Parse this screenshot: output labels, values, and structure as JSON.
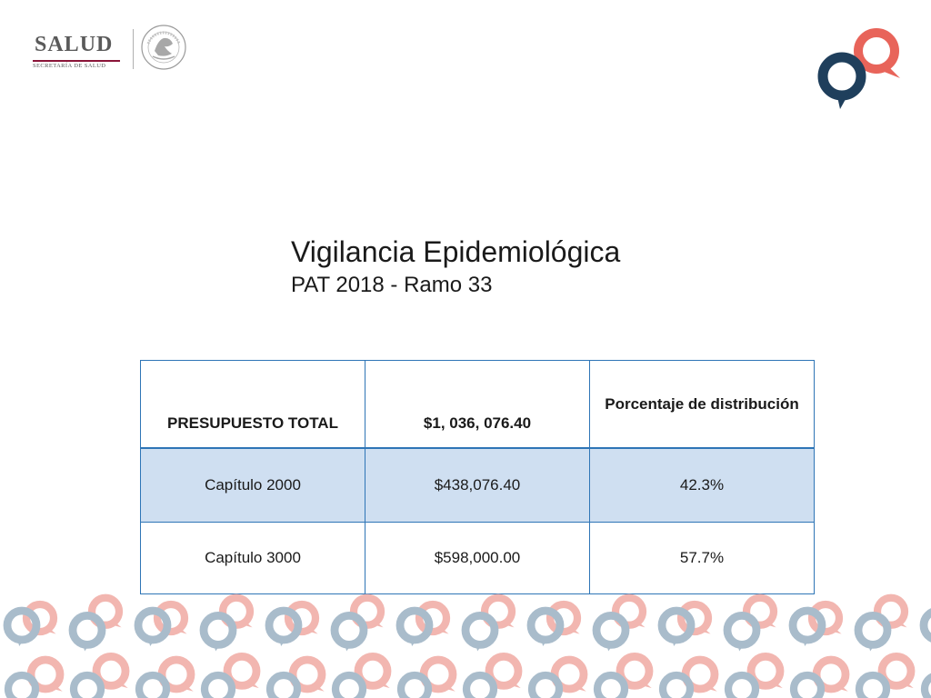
{
  "header": {
    "logo_word": "SALUD",
    "logo_subtitle": "SECRETARÍA DE SALUD",
    "seal_icon": "mexico-coat-of-arms-seal",
    "brand_icon": "speech-bubble-rings-icon"
  },
  "slide": {
    "title": "Vigilancia Epidemiológica",
    "subtitle": "PAT 2018 - Ramo 33"
  },
  "table": {
    "header": {
      "label": "PRESUPUESTO TOTAL",
      "total": "$1, 036, 076.40",
      "percent_label": "Porcentaje de distribución"
    },
    "rows": [
      {
        "chapter": "Capítulo 2000",
        "amount": "$438,076.40",
        "percent": "42.3%"
      },
      {
        "chapter": "Capítulo 3000",
        "amount": "$598,000.00",
        "percent": "57.7%"
      }
    ]
  },
  "colors": {
    "navy": "#1f3f5c",
    "coral": "#e8645a",
    "table_border": "#2e75b6",
    "row_shade": "#cfdff1",
    "pattern_blue": "#a9bccb",
    "pattern_pink": "#f2b6b0"
  }
}
